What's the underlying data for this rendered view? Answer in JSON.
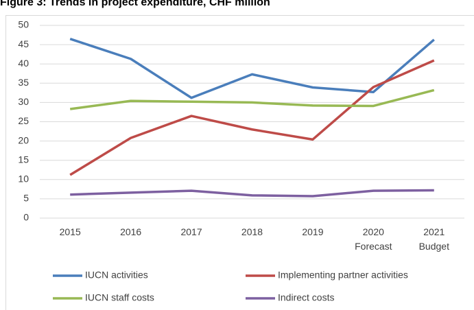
{
  "chart_data": {
    "type": "line",
    "title": "Figure 3: Trends in project expenditure, CHF million",
    "categories": [
      "2015",
      "2016",
      "2017",
      "2018",
      "2019",
      "2020\nForecast",
      "2021\nBudget"
    ],
    "series": [
      {
        "name": "IUCN activities",
        "color": "#4a7ebb",
        "values": [
          46.5,
          41.3,
          31.2,
          37.3,
          33.9,
          32.7,
          46.3
        ]
      },
      {
        "name": "Implementing partner activities",
        "color": "#be4b48",
        "values": [
          11.2,
          20.8,
          26.5,
          23.0,
          20.4,
          34.0,
          40.9
        ]
      },
      {
        "name": "IUCN staff costs",
        "color": "#98b954",
        "values": [
          28.3,
          30.4,
          30.2,
          30.0,
          29.2,
          29.1,
          33.2
        ]
      },
      {
        "name": "Indirect costs",
        "color": "#7d60a0",
        "values": [
          6.1,
          6.6,
          7.1,
          5.9,
          5.7,
          7.1,
          7.2
        ]
      }
    ],
    "ylim": [
      0,
      50
    ],
    "yticks": [
      0,
      5,
      10,
      15,
      20,
      25,
      30,
      35,
      40,
      45,
      50
    ],
    "grid": true,
    "legend": "bottom"
  }
}
